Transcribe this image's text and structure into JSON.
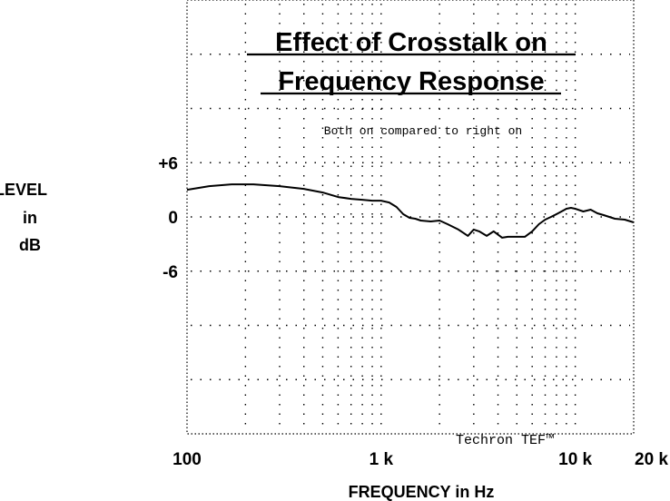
{
  "chart_data": {
    "type": "line",
    "title_line1": "Effect of Crosstalk on",
    "title_line2": "Frequency Response",
    "subtitle": "Both on compared to right on",
    "ylabel_lines": [
      "LEVEL",
      "in",
      "dB"
    ],
    "xlabel": "FREQUENCY in Hz",
    "xscale": "log",
    "xlim": [
      100,
      20000
    ],
    "ylim": [
      -24,
      24
    ],
    "x_ticks": [
      {
        "value": 100,
        "label": "100"
      },
      {
        "value": 1000,
        "label": "1 k"
      },
      {
        "value": 10000,
        "label": "10 k"
      },
      {
        "value": 20000,
        "label": "20 k"
      }
    ],
    "y_ticks": [
      {
        "value": 6,
        "label": "+6"
      },
      {
        "value": 0,
        "label": "0"
      },
      {
        "value": -6,
        "label": "-6"
      }
    ],
    "grid": true,
    "grid_y_step": 6,
    "brand": "Techron TEF™",
    "series": [
      {
        "name": "",
        "x": [
          100,
          130,
          170,
          220,
          300,
          400,
          500,
          600,
          700,
          800,
          900,
          1000,
          1100,
          1200,
          1300,
          1400,
          1500,
          1600,
          1800,
          2000,
          2200,
          2500,
          2800,
          3000,
          3200,
          3500,
          3800,
          4200,
          4500,
          5000,
          5500,
          6000,
          6500,
          7000,
          7500,
          8000,
          8500,
          9000,
          9500,
          10000,
          11000,
          12000,
          13000,
          14000,
          16000,
          18000,
          20000
        ],
        "values": [
          3.0,
          3.4,
          3.6,
          3.6,
          3.4,
          3.1,
          2.7,
          2.2,
          2.0,
          1.9,
          1.8,
          1.8,
          1.6,
          1.1,
          0.3,
          -0.1,
          -0.2,
          -0.4,
          -0.5,
          -0.4,
          -0.8,
          -1.4,
          -2.1,
          -1.4,
          -1.6,
          -2.1,
          -1.6,
          -2.3,
          -2.2,
          -2.2,
          -2.2,
          -1.6,
          -0.8,
          -0.3,
          0.0,
          0.3,
          0.6,
          0.9,
          1.0,
          0.9,
          0.6,
          0.8,
          0.4,
          0.2,
          -0.2,
          -0.3,
          -0.6
        ]
      }
    ]
  }
}
